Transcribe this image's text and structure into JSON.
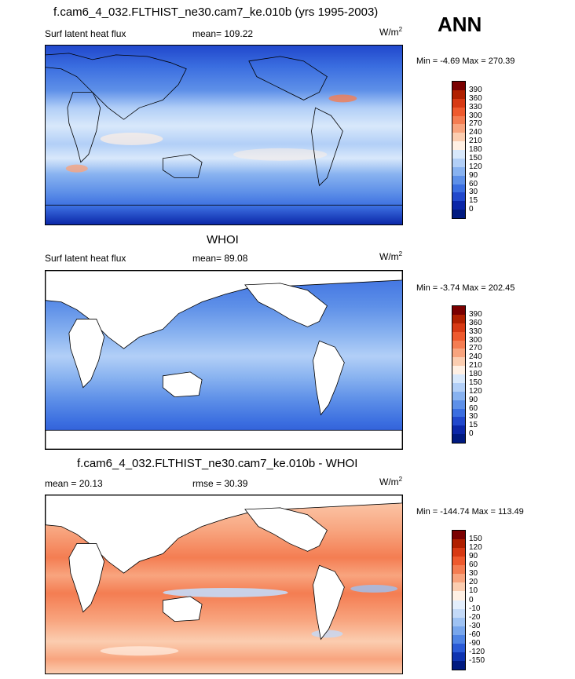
{
  "season": "ANN",
  "panels": [
    {
      "title": "f.cam6_4_032.FLTHIST_ne30.cam7_ke.010b (yrs 1995-2003)",
      "left_label": "Surf latent heat flux",
      "mid_label": "mean=  109.22",
      "units": "W/m",
      "units_exp": "2",
      "minmax": "Min =  -4.69 Max = 270.39",
      "colorbar": {
        "labels": [
          "390",
          "360",
          "330",
          "300",
          "270",
          "240",
          "210",
          "180",
          "150",
          "120",
          "90",
          "60",
          "30",
          "15",
          "0"
        ],
        "colors": [
          "#7a0000",
          "#b02000",
          "#d73a14",
          "#ee5a2e",
          "#f47d52",
          "#f8a47e",
          "#fbcdb0",
          "#fff0e4",
          "#d8e8fb",
          "#b2cff7",
          "#88b2f0",
          "#5e90e8",
          "#3b6ee0",
          "#2148cc",
          "#0b27a8",
          "#001a80"
        ]
      }
    },
    {
      "title": "WHOI",
      "left_label": "Surf latent heat flux",
      "mid_label": "mean=  89.08",
      "units": "W/m",
      "units_exp": "2",
      "minmax": "Min =  -3.74 Max = 202.45",
      "colorbar": {
        "labels": [
          "390",
          "360",
          "330",
          "300",
          "270",
          "240",
          "210",
          "180",
          "150",
          "120",
          "90",
          "60",
          "30",
          "15",
          "0"
        ],
        "colors": [
          "#7a0000",
          "#b02000",
          "#d73a14",
          "#ee5a2e",
          "#f47d52",
          "#f8a47e",
          "#fbcdb0",
          "#fff0e4",
          "#d8e8fb",
          "#b2cff7",
          "#88b2f0",
          "#5e90e8",
          "#3b6ee0",
          "#2148cc",
          "#0b27a8",
          "#001a80"
        ]
      }
    },
    {
      "title": "f.cam6_4_032.FLTHIST_ne30.cam7_ke.010b - WHOI",
      "left_label": "mean =  20.13",
      "mid_label": "rmse =  30.39",
      "units": "W/m",
      "units_exp": "2",
      "minmax": "Min = -144.74 Max = 113.49",
      "colorbar": {
        "labels": [
          "150",
          "120",
          "90",
          "60",
          "30",
          "20",
          "10",
          "0",
          "-10",
          "-20",
          "-30",
          "-60",
          "-90",
          "-120",
          "-150"
        ],
        "colors": [
          "#7a0000",
          "#b02000",
          "#d73a14",
          "#ee5a2e",
          "#f47d52",
          "#f8a47e",
          "#fbcdb0",
          "#fff0e4",
          "#e3eefc",
          "#c4daf8",
          "#9ec2f3",
          "#78a6ec",
          "#4f84e4",
          "#2a5ad6",
          "#0e33b0",
          "#001a80"
        ]
      }
    }
  ]
}
